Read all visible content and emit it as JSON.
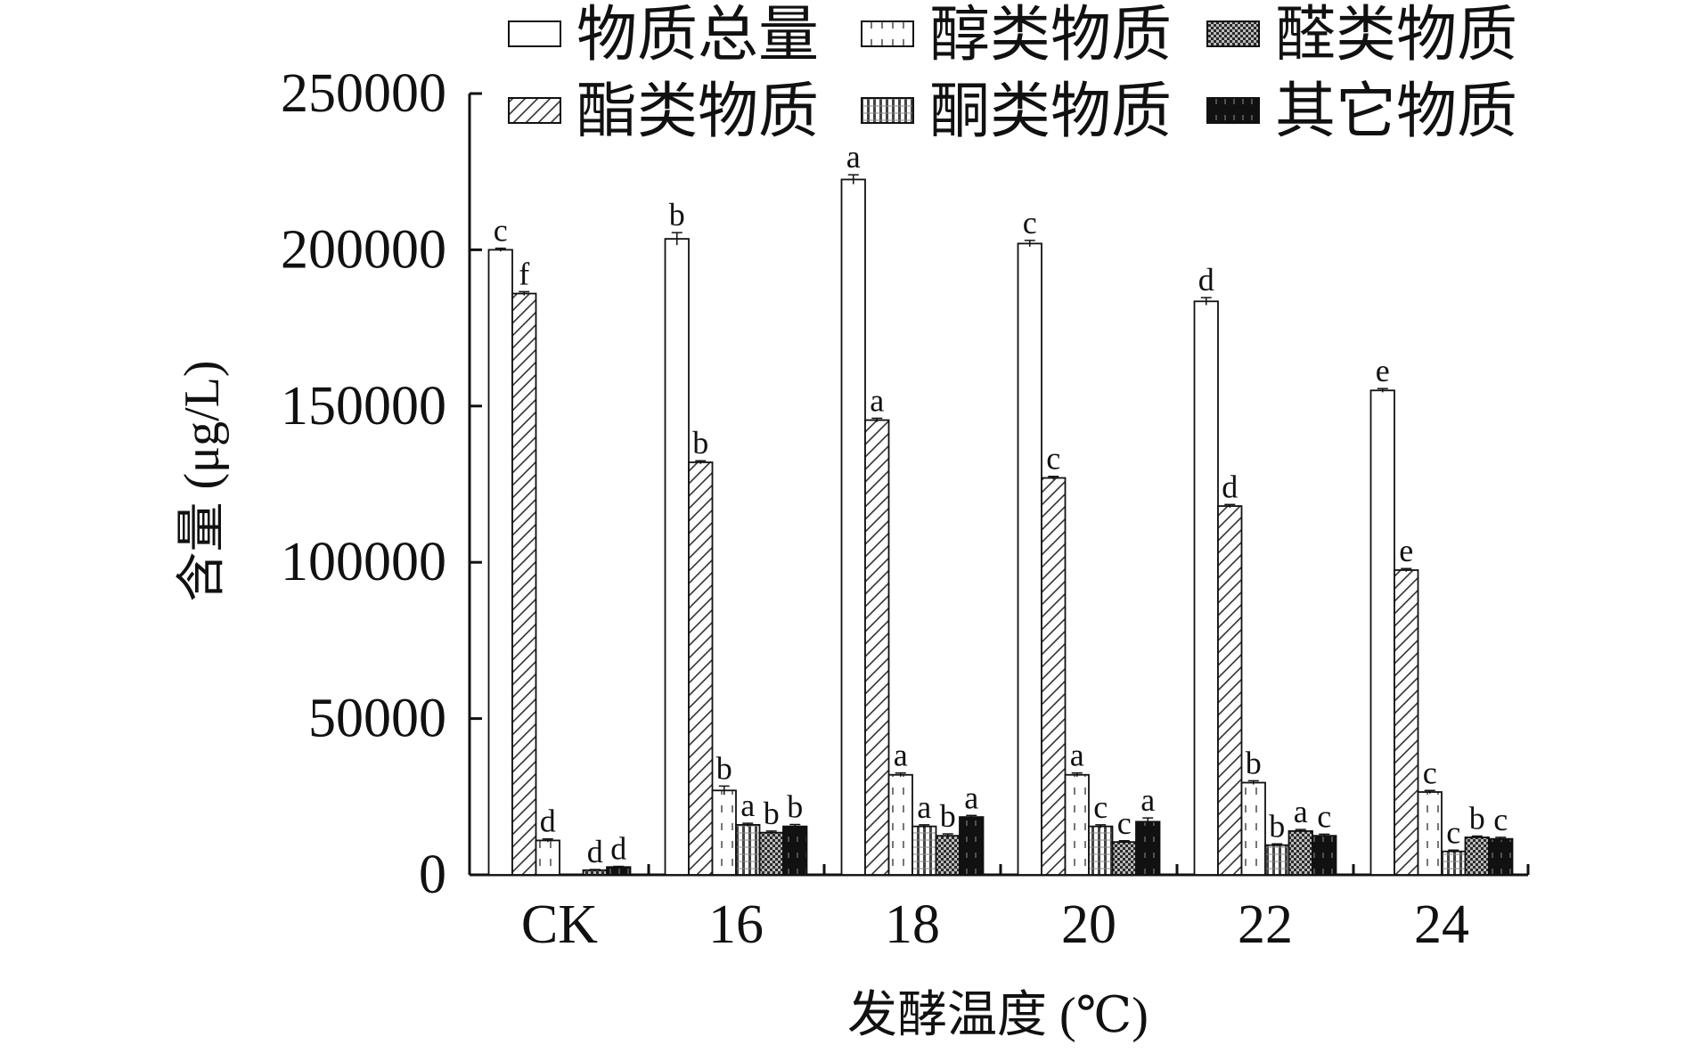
{
  "chart_data": {
    "type": "bar",
    "xlabel": "发酵温度 (℃)",
    "ylabel": "含量 (μg/L)",
    "ylim": [
      0,
      250000
    ],
    "yticks": [
      0,
      50000,
      100000,
      150000,
      200000,
      250000
    ],
    "ytick_labels": [
      "0",
      "50000",
      "100000",
      "150000",
      "200000",
      "250000"
    ],
    "categories": [
      "CK",
      "16",
      "18",
      "20",
      "22",
      "24"
    ],
    "legend_position": "top",
    "grid": false,
    "series": [
      {
        "name": "物质总量",
        "pattern": "empty",
        "values": [
          200000,
          203500,
          222500,
          202000,
          183500,
          155000
        ],
        "errors": [
          500,
          2000,
          1500,
          1000,
          1200,
          600
        ],
        "sig": [
          "c",
          "b",
          "a",
          "c",
          "d",
          "e"
        ]
      },
      {
        "name": "酯类物质",
        "pattern": "hatch",
        "values": [
          186000,
          132000,
          145500,
          127000,
          118000,
          97500
        ],
        "errors": [
          600,
          500,
          600,
          500,
          500,
          500
        ],
        "sig": [
          "f",
          "b",
          "a",
          "c",
          "d",
          "e"
        ]
      },
      {
        "name": "醇类物质",
        "pattern": "ticks",
        "values": [
          11000,
          27000,
          32000,
          32000,
          29500,
          26500
        ],
        "errors": [
          500,
          1400,
          600,
          600,
          600,
          500
        ],
        "sig": [
          "d",
          "b",
          "a",
          "a",
          "b",
          "c"
        ]
      },
      {
        "name": "酮类物质",
        "pattern": "vstripes",
        "values": [
          0,
          16000,
          15500,
          15500,
          9500,
          7500
        ],
        "errors": [
          0,
          500,
          500,
          500,
          400,
          400
        ],
        "sig": [
          "",
          "a",
          "a",
          "c",
          "b",
          "c"
        ]
      },
      {
        "name": "醛类物质",
        "pattern": "checker",
        "values": [
          1500,
          13500,
          12500,
          10500,
          14000,
          12000
        ],
        "errors": [
          200,
          500,
          600,
          400,
          500,
          400
        ],
        "sig": [
          "d",
          "b",
          "b",
          "c",
          "a",
          "b"
        ]
      },
      {
        "name": "其它物质",
        "pattern": "dark",
        "values": [
          2500,
          15500,
          18500,
          17000,
          12500,
          11500
        ],
        "errors": [
          200,
          600,
          500,
          1200,
          500,
          500
        ],
        "sig": [
          "d",
          "b",
          "a",
          "a",
          "c",
          "c"
        ]
      }
    ]
  }
}
